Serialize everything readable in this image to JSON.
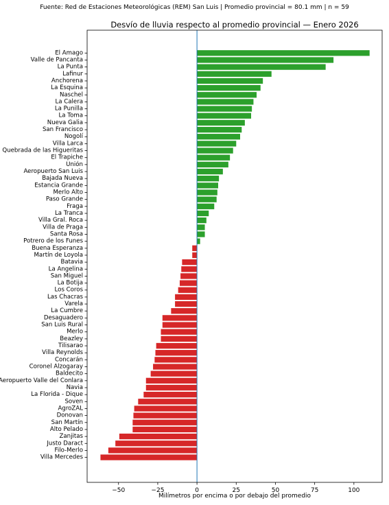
{
  "header": {
    "source_line": "Fuente: Red de Estaciones Meteorológicas (REM) San Luis | Promedio provincial = 80.1 mm | n = 59"
  },
  "chart_data": {
    "type": "bar",
    "orientation": "horizontal",
    "title": "Desvío de lluvia respecto al promedio provincial — Enero 2026",
    "xlabel": "Milímetros por encima o por debajo del promedio",
    "ylabel": "",
    "xlim": [
      -70,
      118
    ],
    "xticks": [
      -50,
      -25,
      0,
      25,
      50,
      75,
      100
    ],
    "xtick_labels": [
      "−50",
      "−25",
      "0",
      "25",
      "50",
      "75",
      "100"
    ],
    "grid": false,
    "reference_line": 0,
    "colors": {
      "positive": "#2ca02c",
      "negative": "#d62728",
      "reference": "#1f77b4"
    },
    "categories": [
      "El Amago",
      "Valle de Pancanta",
      "La Punta",
      "Lafinur",
      "Anchorena",
      "La Esquina",
      "Naschel",
      "La Calera",
      "La Punilla",
      "La Toma",
      "Nueva Galia",
      "San Francisco",
      "Nogolí",
      "Villa Larca",
      "Quebrada de las Higueritas",
      "El Trapiche",
      "Unión",
      "Aeropuerto San Luis",
      "Bajada Nueva",
      "Estancia Grande",
      "Merlo Alto",
      "Paso Grande",
      "Fraga",
      "La Tranca",
      "Villa Gral. Roca",
      "Villa de Praga",
      "Santa Rosa",
      "Potrero de los Funes",
      "Buena Esperanza",
      "Martín de Loyola",
      "Batavia",
      "La Angelina",
      "San Miguel",
      "La Botija",
      "Los Coros",
      "Las Chacras",
      "Varela",
      "La Cumbre",
      "Desaguadero",
      "San Luis Rural",
      "Merlo",
      "Beazley",
      "Tilisarao",
      "Villa Reynolds",
      "Concarán",
      "Coronel Alzogaray",
      "Baldecito",
      "Aeropuerto Valle del Conlara",
      "Navia",
      "La Florida - Dique",
      "Soven",
      "AgroZAL",
      "Donovan",
      "San Martín",
      "Alto Pelado",
      "Zanjitas",
      "Justo Daract",
      "Filo-Merlo",
      "Villa Mercedes"
    ],
    "values": [
      110,
      87,
      82,
      47.5,
      42,
      40.5,
      38,
      36,
      35,
      34.5,
      30.5,
      28.5,
      27.5,
      25,
      23,
      21,
      20,
      16.5,
      14,
      13.5,
      13,
      12.5,
      11,
      7.5,
      6,
      5,
      5,
      2,
      -3,
      -3,
      -9.5,
      -10,
      -10.5,
      -11,
      -12,
      -14,
      -14,
      -16.5,
      -22,
      -22,
      -23,
      -23,
      -26,
      -26.5,
      -27,
      -28,
      -29.5,
      -32.5,
      -32.5,
      -34,
      -37.5,
      -40,
      -40.5,
      -41,
      -41,
      -49.5,
      -52,
      -56.5,
      -61.5
    ]
  }
}
